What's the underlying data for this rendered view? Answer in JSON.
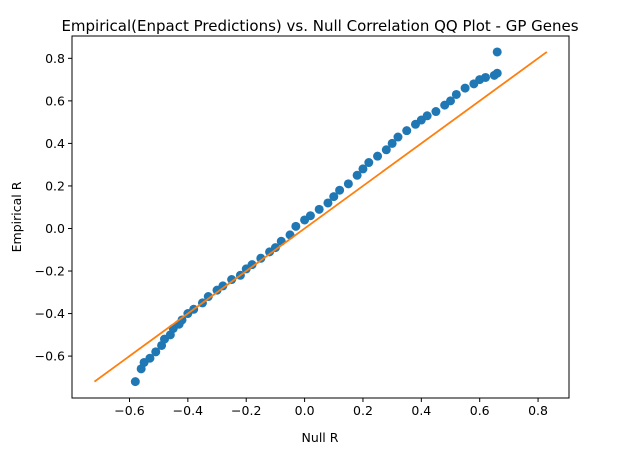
{
  "chart_data": {
    "type": "scatter",
    "title": "Empirical(Enpact Predictions) vs. Null Correlation QQ Plot - GP Genes",
    "xlabel": "Null R",
    "ylabel": "Empirical R",
    "xlim": [
      -0.797,
      0.906
    ],
    "ylim": [
      -0.797,
      0.905
    ],
    "xticks": [
      -0.6,
      -0.4,
      -0.2,
      0.0,
      0.2,
      0.4,
      0.6,
      0.8
    ],
    "yticks": [
      -0.6,
      -0.4,
      -0.2,
      0.0,
      0.2,
      0.4,
      0.6,
      0.8
    ],
    "xtick_labels": [
      "−0.6",
      "−0.4",
      "−0.2",
      "0.0",
      "0.2",
      "0.4",
      "0.6",
      "0.8"
    ],
    "ytick_labels": [
      "−0.6",
      "−0.4",
      "−0.2",
      "0.0",
      "0.2",
      "0.4",
      "0.6",
      "0.8"
    ],
    "grid": false,
    "legend": "none",
    "series": [
      {
        "kind": "points",
        "color": "#1f77b4",
        "x": [
          -0.58,
          -0.56,
          -0.55,
          -0.53,
          -0.51,
          -0.49,
          -0.48,
          -0.46,
          -0.45,
          -0.43,
          -0.42,
          -0.4,
          -0.38,
          -0.35,
          -0.33,
          -0.3,
          -0.28,
          -0.25,
          -0.22,
          -0.2,
          -0.18,
          -0.15,
          -0.12,
          -0.1,
          -0.08,
          -0.05,
          -0.03,
          0.0,
          0.02,
          0.05,
          0.08,
          0.1,
          0.12,
          0.15,
          0.18,
          0.2,
          0.22,
          0.25,
          0.28,
          0.3,
          0.32,
          0.35,
          0.38,
          0.4,
          0.42,
          0.45,
          0.48,
          0.5,
          0.52,
          0.55,
          0.58,
          0.6,
          0.62,
          0.65,
          0.66,
          0.66
        ],
        "y": [
          -0.72,
          -0.66,
          -0.63,
          -0.61,
          -0.58,
          -0.55,
          -0.52,
          -0.5,
          -0.47,
          -0.45,
          -0.43,
          -0.4,
          -0.38,
          -0.35,
          -0.32,
          -0.29,
          -0.27,
          -0.24,
          -0.22,
          -0.19,
          -0.17,
          -0.14,
          -0.11,
          -0.09,
          -0.06,
          -0.03,
          0.01,
          0.04,
          0.06,
          0.09,
          0.12,
          0.15,
          0.18,
          0.21,
          0.25,
          0.28,
          0.31,
          0.34,
          0.37,
          0.4,
          0.43,
          0.46,
          0.49,
          0.51,
          0.53,
          0.55,
          0.58,
          0.6,
          0.63,
          0.66,
          0.68,
          0.7,
          0.71,
          0.72,
          0.73,
          0.83
        ]
      },
      {
        "kind": "line",
        "color": "#ff7f0e",
        "x": [
          -0.72,
          0.83
        ],
        "y": [
          -0.72,
          0.83
        ]
      }
    ]
  }
}
